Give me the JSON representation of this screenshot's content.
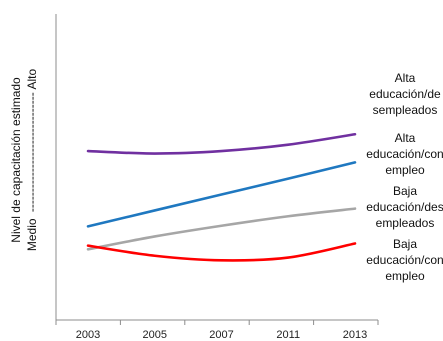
{
  "chart_data": {
    "type": "line",
    "title": "",
    "xlabel": "",
    "ylabel": {
      "line1": "Nivel de capacitación estimado",
      "line2_low": "Medio",
      "line2_dashes": "------------------------------",
      "line2_high": "Alto"
    },
    "x_ticks": [
      "2003",
      "2005",
      "2007",
      "2011",
      "2013"
    ],
    "x": [
      2003,
      2005,
      2007,
      2011,
      2013
    ],
    "ylim": [
      0,
      100
    ],
    "grid": false,
    "legend": "none (labels placed at line ends)",
    "series": [
      {
        "name_lines": [
          "Alta",
          "educación/de",
          "sempleados"
        ],
        "color": "#7030a0",
        "values": [
          55.2,
          54.4,
          55.2,
          57.3,
          60.7
        ]
      },
      {
        "name_lines": [
          "Alta",
          "educación/con",
          "empleo"
        ],
        "color": "#1f78c0",
        "values": [
          30.6,
          35.8,
          41.0,
          46.2,
          51.5
        ]
      },
      {
        "name_lines": [
          "Baja",
          "educación/des",
          "empleados"
        ],
        "color": "#a6a6a6",
        "values": [
          23.1,
          27.3,
          30.8,
          33.9,
          36.4
        ]
      },
      {
        "name_lines": [
          "Baja",
          "educación/con",
          "empleo"
        ],
        "color": "#ff0000",
        "values": [
          24.3,
          21.0,
          19.5,
          20.4,
          25.0
        ]
      }
    ]
  }
}
